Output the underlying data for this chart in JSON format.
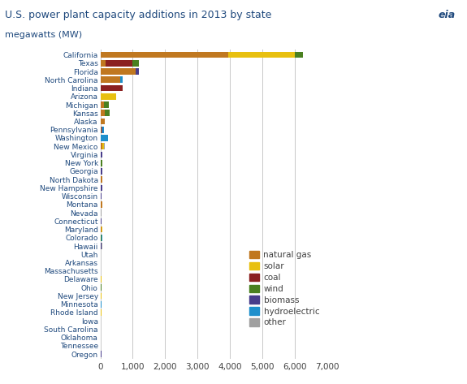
{
  "title": "U.S. power plant capacity additions in 2013 by state",
  "subtitle": "megawatts (MW)",
  "states": [
    "California",
    "Texas",
    "Florida",
    "North Carolina",
    "Indiana",
    "Arizona",
    "Michigan",
    "Kansas",
    "Alaska",
    "Pennsylvania",
    "Washington",
    "New Mexico",
    "Virginia",
    "New York",
    "Georgia",
    "North Dakota",
    "New Hampshire",
    "Wisconsin",
    "Montana",
    "Nevada",
    "Connecticut",
    "Maryland",
    "Colorado",
    "Hawaii",
    "Utah",
    "Arkansas",
    "Massachusetts",
    "Delaware",
    "Ohio",
    "New Jersey",
    "Minnesota",
    "Rhode Island",
    "Iowa",
    "South Carolina",
    "Oklahoma",
    "Tennessee",
    "Oregon"
  ],
  "data": {
    "natural_gas": [
      3950,
      160,
      1100,
      620,
      0,
      0,
      100,
      130,
      130,
      40,
      0,
      70,
      0,
      0,
      0,
      55,
      0,
      0,
      55,
      0,
      0,
      30,
      0,
      0,
      0,
      0,
      0,
      0,
      0,
      0,
      0,
      0,
      0,
      0,
      0,
      0,
      0
    ],
    "solar": [
      2050,
      0,
      0,
      0,
      0,
      490,
      0,
      0,
      0,
      0,
      0,
      40,
      0,
      0,
      0,
      0,
      0,
      0,
      0,
      0,
      0,
      40,
      0,
      0,
      0,
      0,
      0,
      30,
      0,
      30,
      0,
      30,
      0,
      0,
      0,
      0,
      0
    ],
    "coal": [
      0,
      820,
      0,
      0,
      680,
      0,
      0,
      0,
      0,
      0,
      0,
      0,
      0,
      0,
      0,
      0,
      0,
      0,
      0,
      0,
      0,
      0,
      0,
      0,
      0,
      0,
      0,
      0,
      0,
      0,
      0,
      0,
      0,
      0,
      0,
      0,
      0
    ],
    "wind": [
      250,
      200,
      0,
      0,
      0,
      0,
      170,
      150,
      0,
      0,
      0,
      0,
      0,
      60,
      0,
      0,
      0,
      0,
      0,
      0,
      0,
      0,
      25,
      0,
      0,
      0,
      0,
      0,
      25,
      0,
      0,
      0,
      0,
      0,
      0,
      0,
      0
    ],
    "biomass": [
      0,
      0,
      90,
      0,
      0,
      0,
      0,
      0,
      0,
      25,
      0,
      0,
      70,
      0,
      50,
      0,
      50,
      40,
      0,
      0,
      40,
      0,
      0,
      25,
      0,
      0,
      0,
      0,
      0,
      0,
      0,
      0,
      0,
      0,
      0,
      0,
      25
    ],
    "hydroelectric": [
      0,
      0,
      0,
      70,
      0,
      0,
      0,
      0,
      0,
      55,
      240,
      0,
      0,
      0,
      0,
      0,
      0,
      0,
      0,
      0,
      0,
      0,
      25,
      0,
      0,
      0,
      0,
      0,
      0,
      0,
      25,
      0,
      0,
      0,
      0,
      0,
      0
    ],
    "other": [
      0,
      0,
      0,
      0,
      0,
      0,
      0,
      0,
      0,
      0,
      0,
      35,
      0,
      0,
      0,
      0,
      0,
      0,
      0,
      35,
      0,
      0,
      0,
      25,
      0,
      0,
      0,
      0,
      0,
      0,
      0,
      0,
      0,
      0,
      0,
      0,
      0
    ]
  },
  "colors": {
    "natural_gas": "#C07820",
    "solar": "#E8C010",
    "coal": "#8B2020",
    "wind": "#4A8020",
    "biomass": "#483D8B",
    "hydroelectric": "#1E8FCC",
    "other": "#A0A0A0"
  },
  "legend_labels": [
    "natural gas",
    "solar",
    "coal",
    "wind",
    "biomass",
    "hydroelectric",
    "other"
  ],
  "xlim": [
    0,
    7000
  ],
  "xticks": [
    0,
    1000,
    2000,
    3000,
    4000,
    5000,
    6000,
    7000
  ],
  "bar_height": 0.75,
  "title_color": "#1F497D",
  "label_color": "#1F497D",
  "tick_color": "#404040",
  "background_color": "#FFFFFF",
  "grid_color": "#C8C8C8",
  "title_fontsize": 9.0,
  "subtitle_fontsize": 8.0,
  "label_fontsize": 6.5,
  "tick_fontsize": 7.5
}
